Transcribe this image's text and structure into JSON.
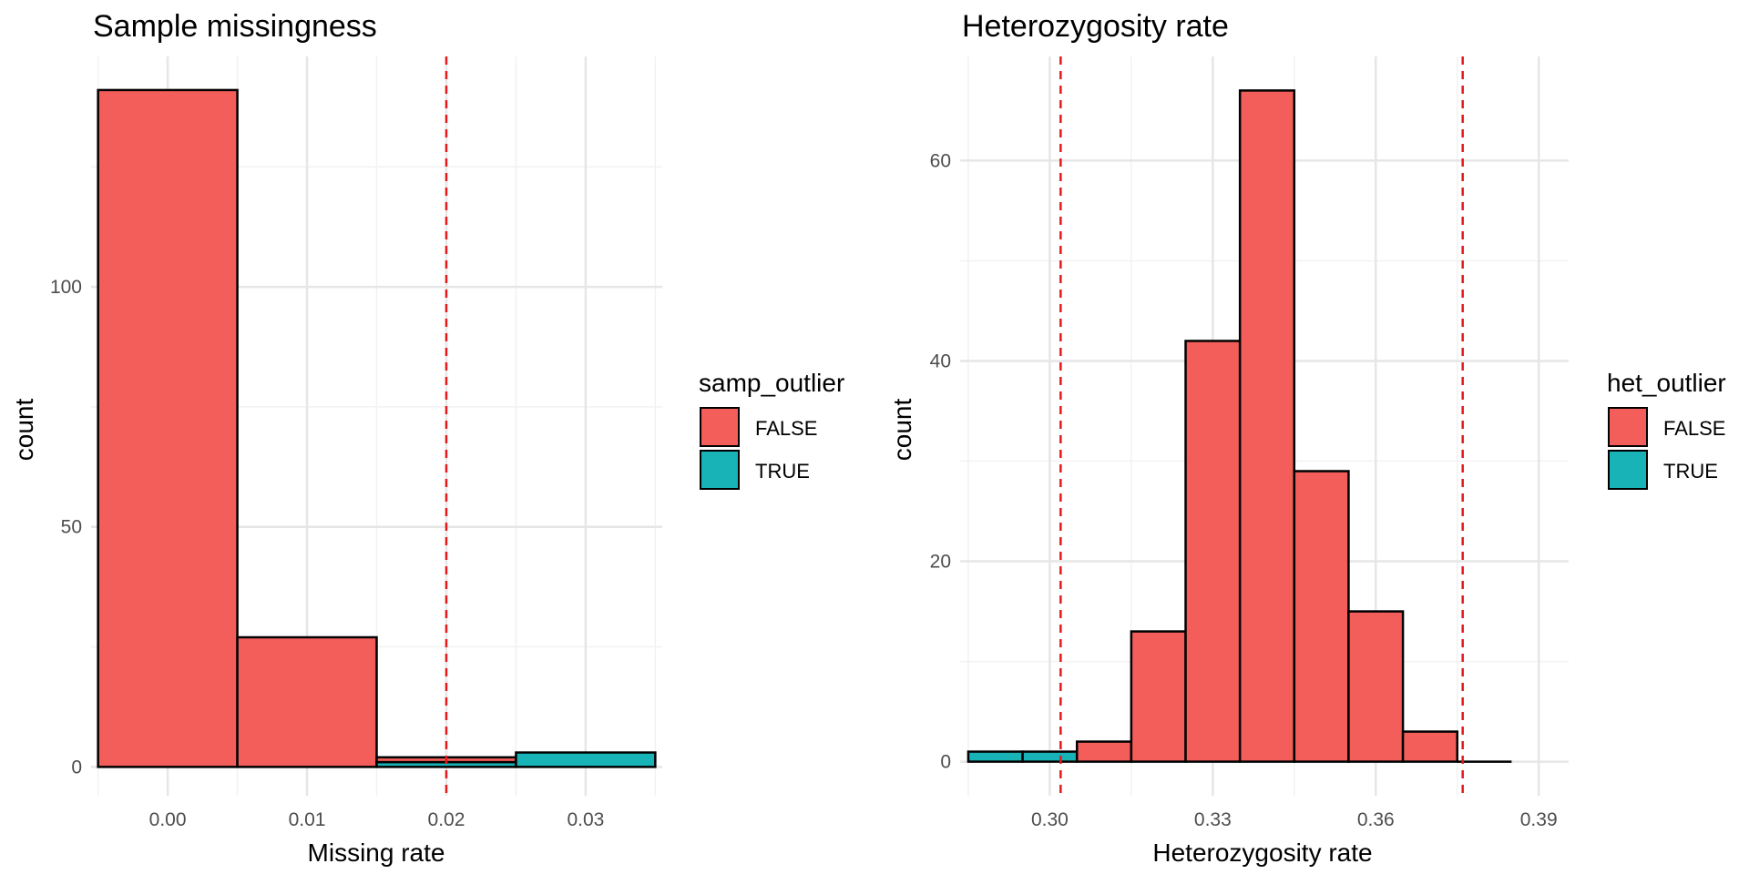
{
  "colors": {
    "false_fill": "#F35E5A",
    "true_fill": "#17B3B7",
    "bar_outline": "#000000",
    "threshold_line": "#E41A1C",
    "grid_major": "#E6E6E6",
    "grid_minor": "#F2F2F2"
  },
  "chart_data": [
    {
      "type": "bar",
      "title": "Sample missingness",
      "xlabel": "Missing rate",
      "ylabel": "count",
      "xlim": [
        -0.0055,
        0.0355
      ],
      "ylim": [
        -6,
        148
      ],
      "xticks": [
        0.0,
        0.01,
        0.02,
        0.03
      ],
      "xtick_labels": [
        "0.00",
        "0.01",
        "0.02",
        "0.03"
      ],
      "xminor": [
        -0.005,
        0.005,
        0.015,
        0.025,
        0.035
      ],
      "yticks": [
        0,
        50,
        100
      ],
      "ytick_labels": [
        "0",
        "50",
        "100"
      ],
      "yminor": [
        25,
        75,
        125
      ],
      "binwidth": 0.01,
      "threshold_lines": [
        0.02
      ],
      "legend": {
        "title": "samp_outlier",
        "entries": [
          "FALSE",
          "TRUE"
        ]
      },
      "bars": [
        {
          "x": 0.0,
          "false": 141,
          "true": 0
        },
        {
          "x": 0.01,
          "false": 27,
          "true": 0
        },
        {
          "x": 0.02,
          "false": 1,
          "true": 1
        },
        {
          "x": 0.03,
          "false": 0,
          "true": 3
        }
      ]
    },
    {
      "type": "bar",
      "title": "Heterozygosity rate",
      "xlabel": "Heterozygosity rate",
      "ylabel": "count",
      "xlim": [
        0.2835,
        0.3955
      ],
      "ylim": [
        -3.4,
        70.4
      ],
      "xticks": [
        0.3,
        0.33,
        0.36,
        0.39
      ],
      "xtick_labels": [
        "0.30",
        "0.33",
        "0.36",
        "0.39"
      ],
      "xminor": [
        0.285,
        0.315,
        0.345,
        0.375
      ],
      "yticks": [
        0,
        20,
        40,
        60
      ],
      "ytick_labels": [
        "0",
        "20",
        "40",
        "60"
      ],
      "yminor": [
        10,
        30,
        50
      ],
      "binwidth": 0.01,
      "threshold_lines": [
        0.302,
        0.376
      ],
      "legend": {
        "title": "het_outlier",
        "entries": [
          "FALSE",
          "TRUE"
        ]
      },
      "bars": [
        {
          "x": 0.29,
          "false": 0,
          "true": 1
        },
        {
          "x": 0.3,
          "false": 0,
          "true": 1
        },
        {
          "x": 0.31,
          "false": 2,
          "true": 0
        },
        {
          "x": 0.32,
          "false": 13,
          "true": 0
        },
        {
          "x": 0.33,
          "false": 42,
          "true": 0
        },
        {
          "x": 0.34,
          "false": 67,
          "true": 0
        },
        {
          "x": 0.35,
          "false": 29,
          "true": 0
        },
        {
          "x": 0.36,
          "false": 15,
          "true": 0
        },
        {
          "x": 0.37,
          "false": 3,
          "true": 0
        },
        {
          "x": 0.38,
          "false": 0,
          "true": 0
        }
      ]
    }
  ]
}
